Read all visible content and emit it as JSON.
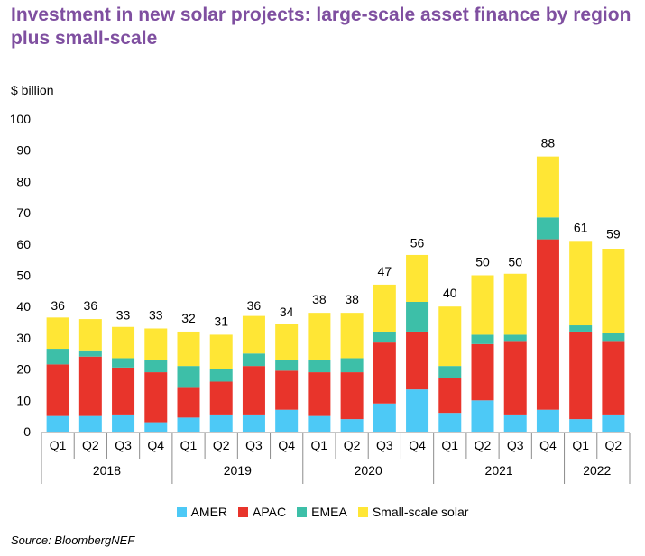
{
  "chart_data": {
    "type": "bar",
    "stacked": true,
    "title": "Investment in new solar projects: large-scale asset finance by region plus small-scale",
    "ylabel": "$ billion",
    "ylim": [
      0,
      100
    ],
    "yticks": [
      0,
      10,
      20,
      30,
      40,
      50,
      60,
      70,
      80,
      90,
      100
    ],
    "grid": false,
    "legend_position": "bottom",
    "categories": [
      "Q1",
      "Q2",
      "Q3",
      "Q4",
      "Q1",
      "Q2",
      "Q3",
      "Q4",
      "Q1",
      "Q2",
      "Q3",
      "Q4",
      "Q1",
      "Q2",
      "Q3",
      "Q4",
      "Q1",
      "Q2"
    ],
    "years": [
      {
        "label": "2018",
        "quarters": 4
      },
      {
        "label": "2019",
        "quarters": 4
      },
      {
        "label": "2020",
        "quarters": 4
      },
      {
        "label": "2021",
        "quarters": 4
      },
      {
        "label": "2022",
        "quarters": 2
      }
    ],
    "series": [
      {
        "name": "AMER",
        "color": "#4dc9f6",
        "values": [
          5,
          5,
          5.5,
          3,
          4.5,
          5.5,
          5.5,
          7,
          5,
          4,
          9,
          13.5,
          6,
          10,
          5.5,
          7,
          4,
          5.5
        ]
      },
      {
        "name": "APAC",
        "color": "#e8342b",
        "values": [
          16.5,
          19,
          15,
          16,
          9.5,
          10.5,
          15.5,
          12.5,
          14,
          15,
          19.5,
          18.5,
          11,
          18,
          23.5,
          54.5,
          28,
          23.5
        ]
      },
      {
        "name": "EMEA",
        "color": "#3dbfa8",
        "values": [
          5,
          2,
          3,
          4,
          7,
          4,
          4,
          3.5,
          4,
          4.5,
          3.5,
          9.5,
          4,
          3,
          2,
          7,
          2,
          2.5
        ]
      },
      {
        "name": "Small-scale solar",
        "color": "#ffe635",
        "values": [
          10,
          10,
          10,
          10,
          11,
          11,
          12,
          11.5,
          15,
          14.5,
          15,
          15,
          19,
          19,
          19.5,
          19.5,
          27,
          27
        ]
      }
    ],
    "totals": [
      36,
      36,
      33,
      33,
      32,
      31,
      36,
      34,
      38,
      38,
      47,
      56,
      40,
      50,
      50,
      88,
      61,
      59
    ]
  },
  "source": "Source: BloombergNEF"
}
